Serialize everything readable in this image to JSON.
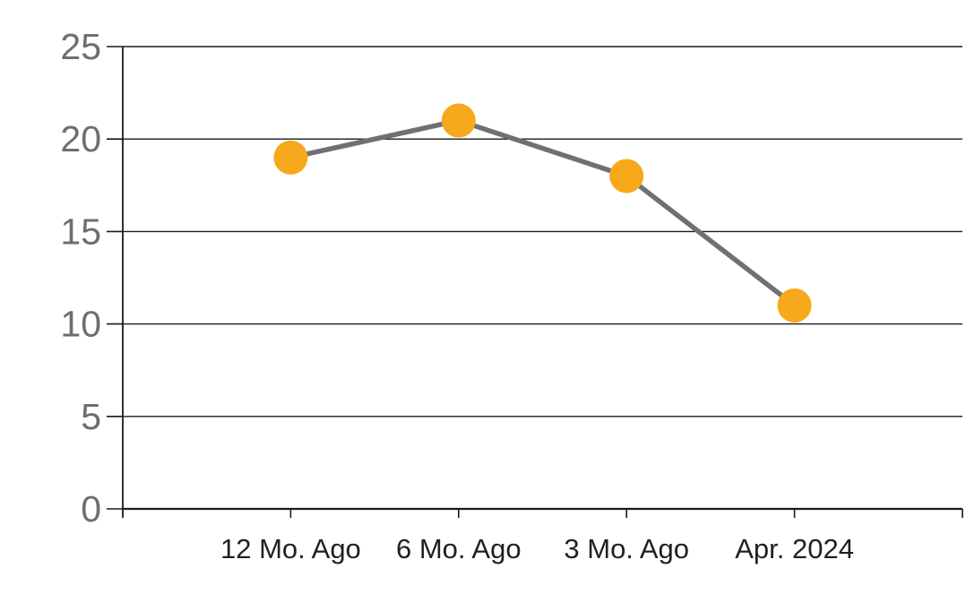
{
  "chart_data": {
    "type": "line",
    "title": "",
    "xlabel": "",
    "ylabel": "",
    "categories": [
      "12 Mo. Ago",
      "6 Mo. Ago",
      "3 Mo. Ago",
      "Apr. 2024"
    ],
    "series": [
      {
        "name": "value",
        "values": [
          19,
          21,
          18,
          11
        ]
      }
    ],
    "ylim": [
      0,
      25
    ],
    "y_ticks": [
      0,
      5,
      10,
      15,
      20,
      25
    ],
    "grid": "horizontal",
    "legend": "none",
    "colors": {
      "marker": "#F7A81B",
      "line": "#6F7073",
      "axis": "#1A1A1A",
      "gridline": "#1A1A1A",
      "y_tick_label": "#6D6E71",
      "x_tick_label": "#231F20",
      "background": "#FFFFFF"
    }
  }
}
